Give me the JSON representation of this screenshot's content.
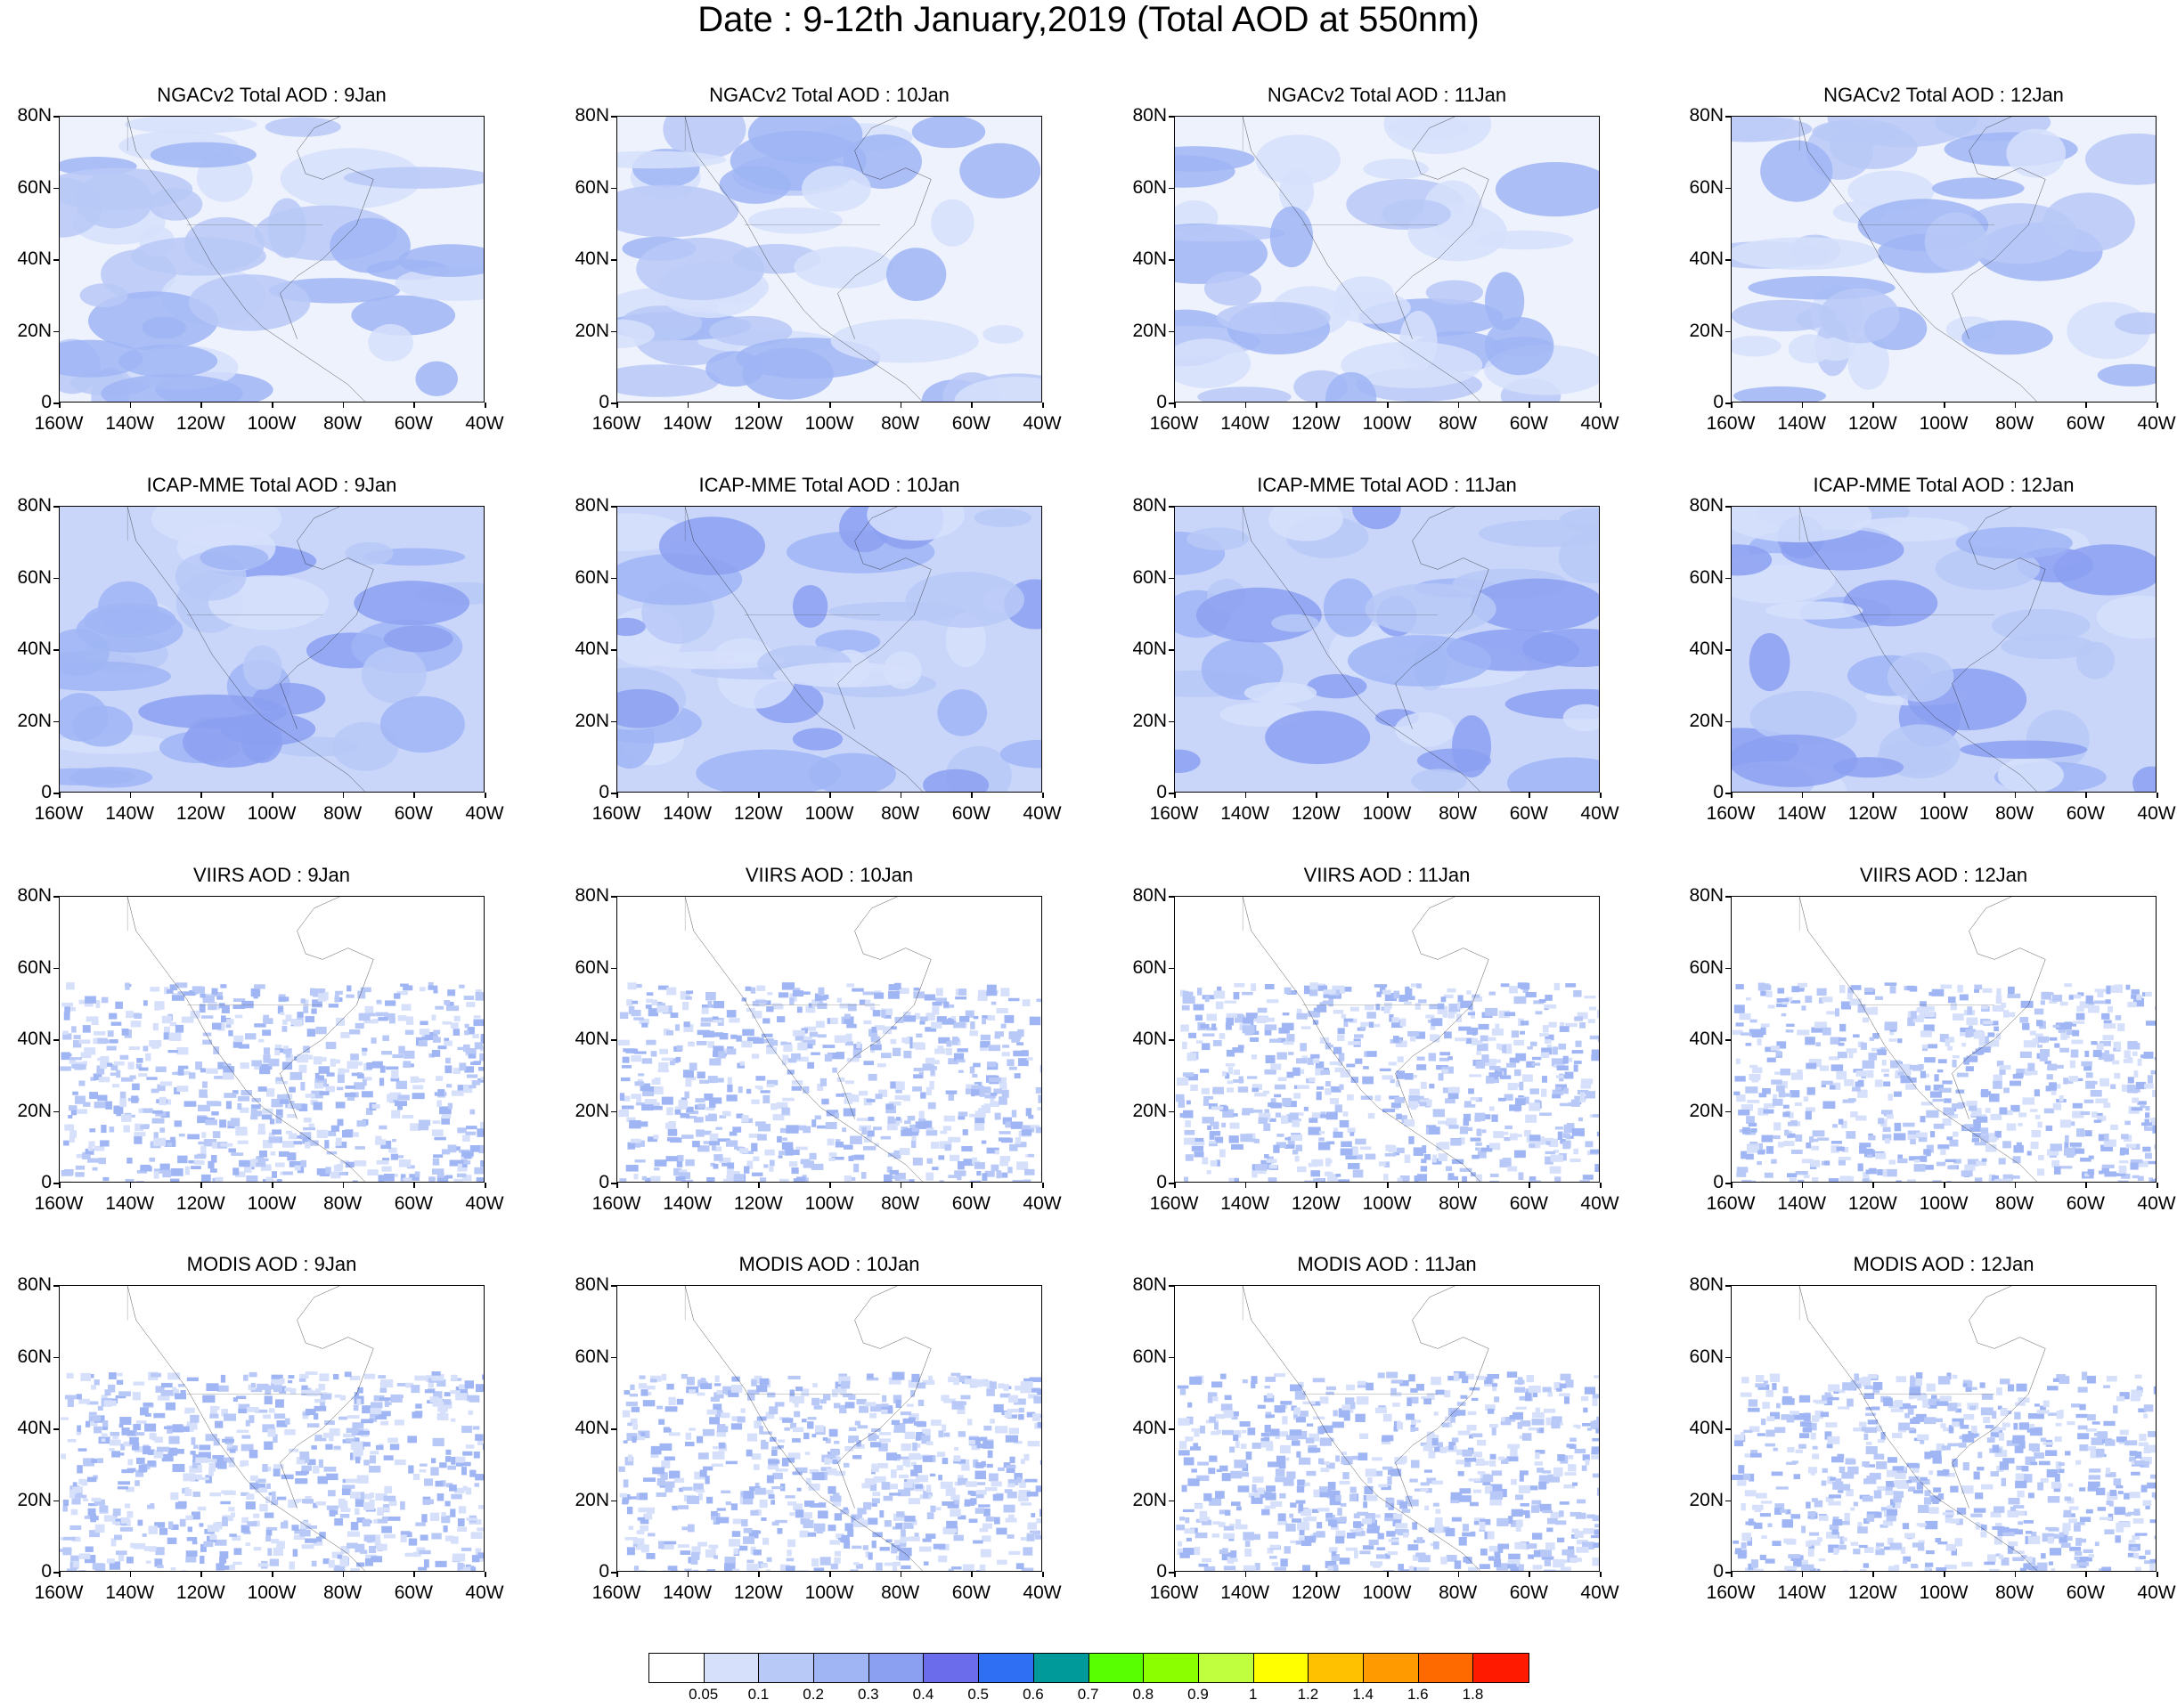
{
  "title": "Date : 9-12th January,2019 (Total AOD at 550nm)",
  "rows": [
    {
      "model": "NGACv2",
      "titles": [
        "NGACv2 Total AOD : 9Jan",
        "NGACv2 Total AOD : 10Jan",
        "NGACv2 Total AOD : 11Jan",
        "NGACv2 Total AOD : 12Jan"
      ]
    },
    {
      "model": "ICAP-MME",
      "titles": [
        "ICAP-MME Total AOD : 9Jan",
        "ICAP-MME Total AOD : 10Jan",
        "ICAP-MME Total AOD : 11Jan",
        "ICAP-MME Total AOD : 12Jan"
      ]
    },
    {
      "model": "VIIRS",
      "titles": [
        "VIIRS AOD : 9Jan",
        "VIIRS AOD : 10Jan",
        "VIIRS AOD : 11Jan",
        "VIIRS AOD : 12Jan"
      ]
    },
    {
      "model": "MODIS",
      "titles": [
        "MODIS AOD : 9Jan",
        "MODIS AOD : 10Jan",
        "MODIS AOD : 11Jan",
        "MODIS AOD : 12Jan"
      ]
    }
  ],
  "lat_labels": [
    "80N",
    "60N",
    "40N",
    "20N",
    "0"
  ],
  "lon_labels": [
    "160W",
    "140W",
    "120W",
    "100W",
    "80W",
    "60W",
    "40W"
  ],
  "map_extent": {
    "lon": [
      -160,
      -40
    ],
    "lat": [
      0,
      80
    ]
  },
  "colorbar": {
    "colors": [
      "#ffffff",
      "#d6e0fb",
      "#b9c9f7",
      "#9fb5f4",
      "#8ca0f1",
      "#6a6ceb",
      "#2f6ff3",
      "#009a9a",
      "#57ff00",
      "#8bff00",
      "#c0ff3d",
      "#ffff00",
      "#ffc100",
      "#ff9a00",
      "#ff6a00",
      "#ff1a00"
    ],
    "labels": [
      "0.05",
      "0.1",
      "0.2",
      "0.3",
      "0.4",
      "0.5",
      "0.6",
      "0.7",
      "0.8",
      "0.9",
      "1",
      "1.2",
      "1.4",
      "1.6",
      "1.8"
    ]
  }
}
